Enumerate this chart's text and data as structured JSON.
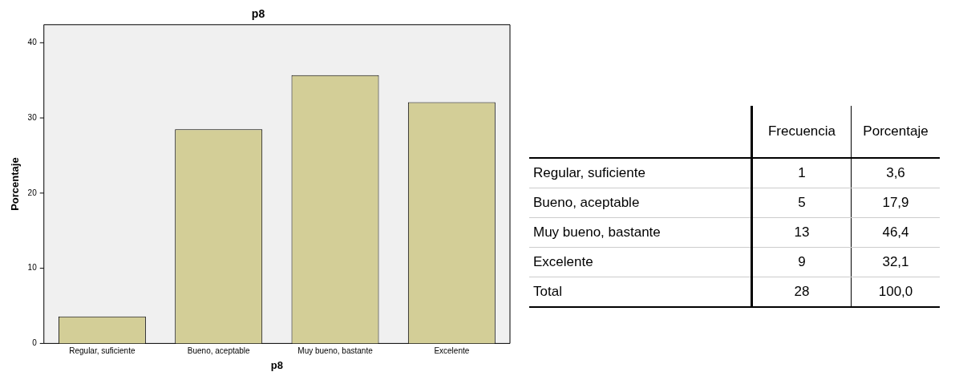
{
  "chart_data": [
    {
      "type": "bar",
      "title": "p8",
      "xlabel": "p8",
      "ylabel": "Porcentaje",
      "categories": [
        "Regular, suficiente",
        "Bueno, aceptable",
        "Muy bueno, bastante",
        "Excelente"
      ],
      "values": [
        3.6,
        28.5,
        35.7,
        32.1
      ],
      "color": "#d3ce97",
      "ylim": [
        0,
        42.4
      ],
      "yticks": [
        0,
        10,
        20,
        30,
        40
      ]
    },
    {
      "type": "other",
      "data_labels": true,
      "categories": [
        "Regular, suficiente",
        "Bueno, aceptable",
        "Muy bueno, bastante",
        "Excelente",
        "Total"
      ],
      "series": [
        {
          "name": "Frecuencia",
          "values": [
            1,
            5,
            13,
            9,
            28
          ]
        },
        {
          "name": "Porcentaje",
          "values": [
            3.6,
            17.9,
            46.4,
            32.1,
            100.0
          ],
          "value_labels": [
            "3,6",
            "17,9",
            "46,4",
            "32,1",
            "100,0"
          ]
        }
      ]
    }
  ]
}
